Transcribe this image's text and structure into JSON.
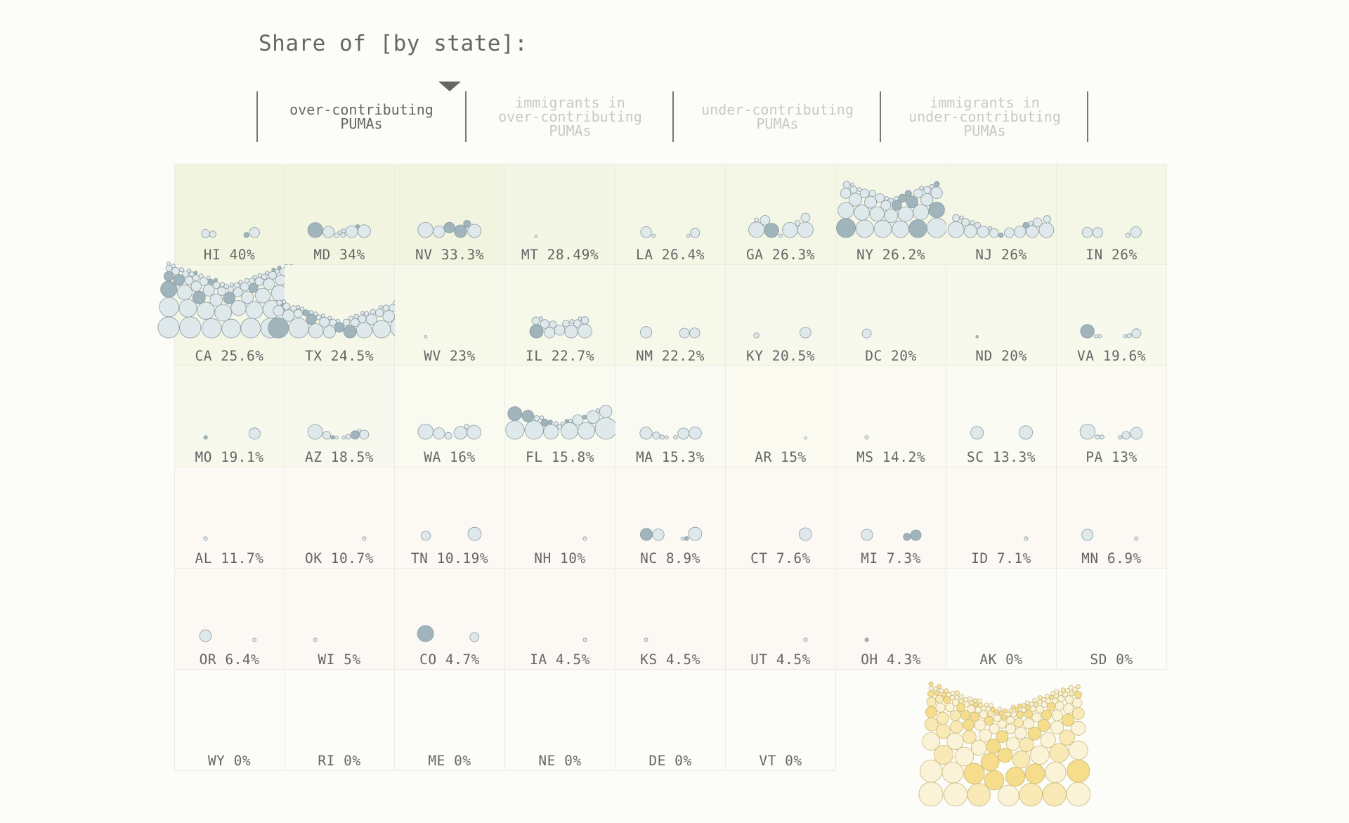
{
  "title": "Share of [by state]:",
  "tabs": [
    {
      "label": "over-contributing\nPUMAs",
      "active": true
    },
    {
      "label": "immigrants in\nover-contributing\nPUMAs",
      "active": false
    },
    {
      "label": "under-contributing\nPUMAs",
      "active": false
    },
    {
      "label": "immigrants in\nunder-contributing\nPUMAs",
      "active": false
    }
  ],
  "colors": {
    "bubble_fill": "#dfe9ec",
    "bubble_stroke": "#8a9aa0",
    "bubble_dark": "#9fb4bb",
    "high_tint": "#f1f5e0",
    "low_tint": "#fbf6f1",
    "legend_fill": "#f7edc4",
    "legend_stroke": "#c9b97a"
  },
  "chart_data": {
    "type": "table",
    "title": "Share of [by state]:",
    "selected_measure": "over-contributing PUMAs",
    "states": [
      {
        "state": "HI",
        "label": "40%",
        "value": 40,
        "pumas": 4
      },
      {
        "state": "MD",
        "label": "34%",
        "value": 34,
        "pumas": 9
      },
      {
        "state": "NV",
        "label": "33.3%",
        "value": 33.3,
        "pumas": 6
      },
      {
        "state": "MT",
        "label": "28.49%",
        "value": 28.49,
        "pumas": 1
      },
      {
        "state": "LA",
        "label": "26.4%",
        "value": 26.4,
        "pumas": 4
      },
      {
        "state": "GA",
        "label": "26.3%",
        "value": 26.3,
        "pumas": 9
      },
      {
        "state": "NY",
        "label": "26.2%",
        "value": 26.2,
        "pumas": 38
      },
      {
        "state": "NJ",
        "label": "26%",
        "value": 26,
        "pumas": 19
      },
      {
        "state": "IN",
        "label": "26%",
        "value": 26,
        "pumas": 4
      },
      {
        "state": "CA",
        "label": "25.6%",
        "value": 25.6,
        "pumas": 72
      },
      {
        "state": "TX",
        "label": "24.5%",
        "value": 24.5,
        "pumas": 45
      },
      {
        "state": "WV",
        "label": "23%",
        "value": 23,
        "pumas": 1
      },
      {
        "state": "IL",
        "label": "22.7%",
        "value": 22.7,
        "pumas": 14
      },
      {
        "state": "NM",
        "label": "22.2%",
        "value": 22.2,
        "pumas": 3
      },
      {
        "state": "KY",
        "label": "20.5%",
        "value": 20.5,
        "pumas": 2
      },
      {
        "state": "DC",
        "label": "20%",
        "value": 20,
        "pumas": 1
      },
      {
        "state": "ND",
        "label": "20%",
        "value": 20,
        "pumas": 1
      },
      {
        "state": "VA",
        "label": "19.6%",
        "value": 19.6,
        "pumas": 6
      },
      {
        "state": "MO",
        "label": "19.1%",
        "value": 19.1,
        "pumas": 2
      },
      {
        "state": "AZ",
        "label": "18.5%",
        "value": 18.5,
        "pumas": 9
      },
      {
        "state": "WA",
        "label": "16%",
        "value": 16,
        "pumas": 6
      },
      {
        "state": "FL",
        "label": "15.8%",
        "value": 15.8,
        "pumas": 22
      },
      {
        "state": "MA",
        "label": "15.3%",
        "value": 15.3,
        "pumas": 7
      },
      {
        "state": "AR",
        "label": "15%",
        "value": 15,
        "pumas": 1
      },
      {
        "state": "MS",
        "label": "14.2%",
        "value": 14.2,
        "pumas": 1
      },
      {
        "state": "SC",
        "label": "13.3%",
        "value": 13.3,
        "pumas": 2
      },
      {
        "state": "PA",
        "label": "13%",
        "value": 13,
        "pumas": 6
      },
      {
        "state": "AL",
        "label": "11.7%",
        "value": 11.7,
        "pumas": 1
      },
      {
        "state": "OK",
        "label": "10.7%",
        "value": 10.7,
        "pumas": 1
      },
      {
        "state": "TN",
        "label": "10.19%",
        "value": 10.19,
        "pumas": 2
      },
      {
        "state": "NH",
        "label": "10%",
        "value": 10,
        "pumas": 1
      },
      {
        "state": "NC",
        "label": "8.9%",
        "value": 8.9,
        "pumas": 5
      },
      {
        "state": "CT",
        "label": "7.6%",
        "value": 7.6,
        "pumas": 1
      },
      {
        "state": "MI",
        "label": "7.3%",
        "value": 7.3,
        "pumas": 3
      },
      {
        "state": "ID",
        "label": "7.1%",
        "value": 7.1,
        "pumas": 1
      },
      {
        "state": "MN",
        "label": "6.9%",
        "value": 6.9,
        "pumas": 2
      },
      {
        "state": "OR",
        "label": "6.4%",
        "value": 6.4,
        "pumas": 2
      },
      {
        "state": "WI",
        "label": "5%",
        "value": 5,
        "pumas": 1
      },
      {
        "state": "CO",
        "label": "4.7%",
        "value": 4.7,
        "pumas": 2
      },
      {
        "state": "IA",
        "label": "4.5%",
        "value": 4.5,
        "pumas": 1
      },
      {
        "state": "KS",
        "label": "4.5%",
        "value": 4.5,
        "pumas": 1
      },
      {
        "state": "UT",
        "label": "4.5%",
        "value": 4.5,
        "pumas": 1
      },
      {
        "state": "OH",
        "label": "4.3%",
        "value": 4.3,
        "pumas": 1
      },
      {
        "state": "AK",
        "label": "0%",
        "value": 0,
        "pumas": 0
      },
      {
        "state": "SD",
        "label": "0%",
        "value": 0,
        "pumas": 0
      },
      {
        "state": "WY",
        "label": "0%",
        "value": 0,
        "pumas": 0
      },
      {
        "state": "RI",
        "label": "0%",
        "value": 0,
        "pumas": 0
      },
      {
        "state": "ME",
        "label": "0%",
        "value": 0,
        "pumas": 0
      },
      {
        "state": "NE",
        "label": "0%",
        "value": 0,
        "pumas": 0
      },
      {
        "state": "DE",
        "label": "0%",
        "value": 0,
        "pumas": 0
      },
      {
        "state": "VT",
        "label": "0%",
        "value": 0,
        "pumas": 0
      }
    ]
  }
}
